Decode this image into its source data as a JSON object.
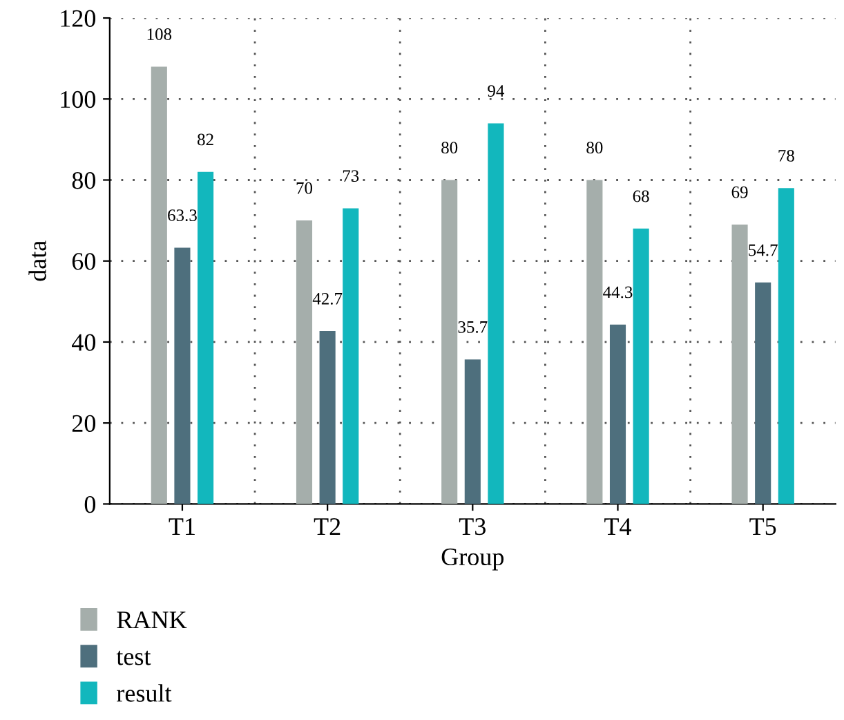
{
  "chart_data": {
    "type": "bar",
    "xlabel": "Group",
    "ylabel": "data",
    "categories": [
      "T1",
      "T2",
      "T3",
      "T4",
      "T5"
    ],
    "series": [
      {
        "name": "RANK",
        "color": "#a5aeab",
        "values": [
          108,
          70,
          80,
          80,
          69
        ]
      },
      {
        "name": "test",
        "color": "#4e6f7d",
        "values": [
          63.3,
          42.7,
          35.7,
          44.3,
          54.7
        ]
      },
      {
        "name": "result",
        "color": "#12b7bd",
        "values": [
          82,
          73,
          94,
          68,
          78
        ]
      }
    ],
    "ylim": [
      0,
      120
    ],
    "yticks": [
      0,
      20,
      40,
      60,
      80,
      100,
      120
    ],
    "grid": true,
    "legend": "bottom left",
    "data_labels": true
  }
}
